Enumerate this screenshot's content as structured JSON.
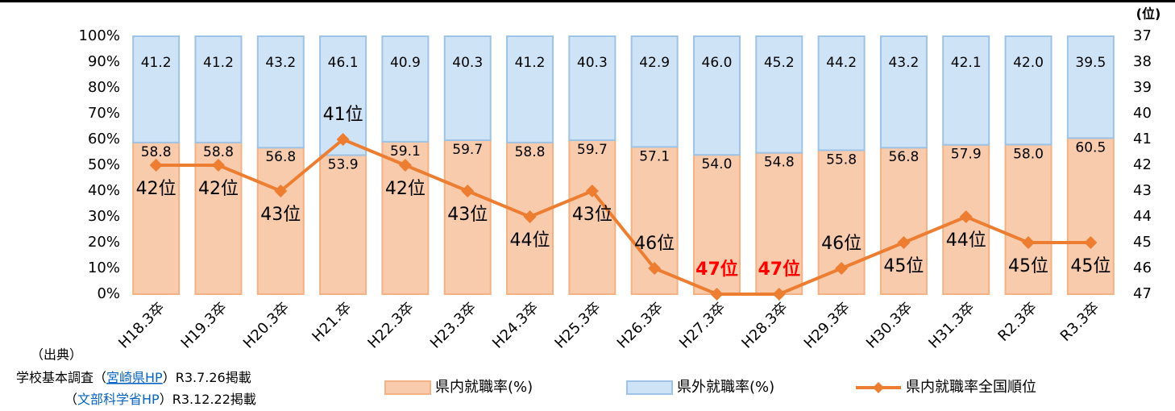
{
  "chart_data": {
    "type": "stacked_bar_line",
    "categories": [
      "H18.3卒",
      "H19.3卒",
      "H20.3卒",
      "H21.卒",
      "H22.3卒",
      "H23.3卒",
      "H24.3卒",
      "H25.3卒",
      "H26.3卒",
      "H27.3卒",
      "H28.3卒",
      "H29.3卒",
      "H30.3卒",
      "H31.3卒",
      "R2.3卒",
      "R3.3卒"
    ],
    "series": [
      {
        "name": "県内就職率(%)",
        "color": "#f8cbad",
        "edge": "#f4b183",
        "values": [
          58.8,
          58.8,
          56.8,
          53.9,
          59.1,
          59.7,
          58.8,
          59.7,
          57.1,
          54.0,
          54.8,
          55.8,
          56.8,
          57.9,
          58.0,
          60.5
        ],
        "value_labels": [
          "58.8",
          "58.8",
          "56.8",
          "53.9",
          "59.1",
          "59.7",
          "58.8",
          "59.7",
          "57.1",
          "54.0",
          "54.8",
          "55.8",
          "56.8",
          "57.9",
          "58.0",
          "60.5"
        ]
      },
      {
        "name": "県外就職率(%)",
        "color": "#cfe3f6",
        "edge": "#9dc3e6",
        "values": [
          41.2,
          41.2,
          43.2,
          46.1,
          40.9,
          40.3,
          41.2,
          40.3,
          42.9,
          46.0,
          45.2,
          44.2,
          43.2,
          42.1,
          42.0,
          39.5
        ],
        "value_labels": [
          "41.2",
          "41.2",
          "43.2",
          "46.1",
          "40.9",
          "40.3",
          "41.2",
          "40.3",
          "42.9",
          "46.0",
          "45.2",
          "44.2",
          "43.2",
          "42.1",
          "42.0",
          "39.5"
        ]
      },
      {
        "name": "県内就職率全国順位",
        "color": "#ed7d31",
        "axis": "y2",
        "values": [
          42,
          42,
          43,
          41,
          42,
          43,
          44,
          43,
          46,
          47,
          47,
          46,
          45,
          44,
          45,
          45
        ],
        "value_labels": [
          "42位",
          "42位",
          "43位",
          "41位",
          "42位",
          "43位",
          "44位",
          "43位",
          "46位",
          "47位",
          "47位",
          "46位",
          "45位",
          "44位",
          "45位",
          "45位"
        ],
        "label_colors": [
          "#000000",
          "#000000",
          "#000000",
          "#000000",
          "#000000",
          "#000000",
          "#000000",
          "#000000",
          "#000000",
          "#ff0000",
          "#ff0000",
          "#000000",
          "#000000",
          "#000000",
          "#000000",
          "#000000"
        ]
      }
    ],
    "ylim": [
      0,
      100
    ],
    "yticks": [
      {
        "value": 0,
        "label": "0%"
      },
      {
        "value": 10,
        "label": "10%"
      },
      {
        "value": 20,
        "label": "20%"
      },
      {
        "value": 30,
        "label": "30%"
      },
      {
        "value": 40,
        "label": "40%"
      },
      {
        "value": 50,
        "label": "50%"
      },
      {
        "value": 60,
        "label": "60%"
      },
      {
        "value": 70,
        "label": "70%"
      },
      {
        "value": 80,
        "label": "80%"
      },
      {
        "value": 90,
        "label": "90%"
      },
      {
        "value": 100,
        "label": "100%"
      }
    ],
    "y2lim": [
      37,
      47
    ],
    "y2_inverted": true,
    "y2ticks": [
      37,
      38,
      39,
      40,
      41,
      42,
      43,
      44,
      45,
      46,
      47
    ],
    "y2_label": "(位)",
    "legend": "bottom",
    "source": {
      "heading": "（出典）",
      "line1": [
        "学校基本調査（",
        "宮崎県HP",
        "）R3.7.26掲載"
      ],
      "line2": [
        "（",
        "文部科学省HP",
        "）R3.12.22掲載"
      ]
    }
  }
}
